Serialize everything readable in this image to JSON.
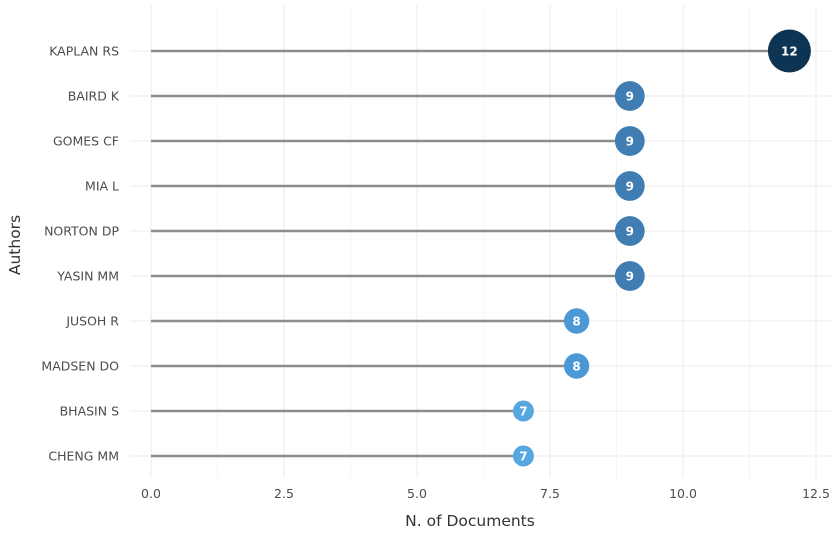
{
  "chart_data": {
    "type": "lollipop",
    "xlabel": "N. of Documents",
    "ylabel": "Authors",
    "xlim": [
      0,
      12.5
    ],
    "xticks": [
      0.0,
      2.5,
      5.0,
      7.5,
      10.0,
      12.5
    ],
    "xtick_labels": [
      "0.0",
      "2.5",
      "5.0",
      "7.5",
      "10.0",
      "12.5"
    ],
    "grid": true,
    "categories": [
      "KAPLAN RS",
      "BAIRD K",
      "GOMES CF",
      "MIA L",
      "NORTON DP",
      "YASIN MM",
      "JUSOH R",
      "MADSEN DO",
      "BHASIN S",
      "CHENG MM"
    ],
    "values": [
      12,
      9,
      9,
      9,
      9,
      9,
      8,
      8,
      7,
      7
    ],
    "value_labels": [
      "12",
      "9",
      "9",
      "9",
      "9",
      "9",
      "8",
      "8",
      "7",
      "7"
    ],
    "color_scale": {
      "7": "#56a6df",
      "8": "#4a98d6",
      "9": "#3f7db3",
      "12": "#0e3453"
    },
    "stem_color": "#8c8c8c"
  }
}
